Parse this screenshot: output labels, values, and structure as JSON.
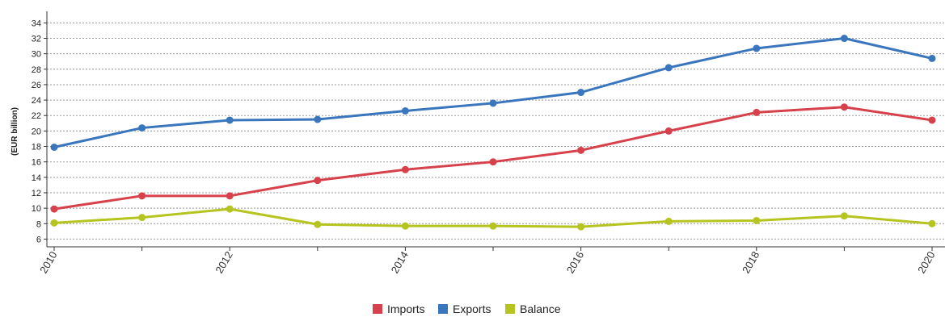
{
  "chart_data": {
    "type": "line",
    "title": "",
    "xlabel": "",
    "ylabel": "(EUR billion)",
    "x": [
      2010,
      2011,
      2012,
      2013,
      2014,
      2015,
      2016,
      2017,
      2018,
      2019,
      2020
    ],
    "x_tick_labels": [
      "2010",
      "2012",
      "2014",
      "2016",
      "2018",
      "2020"
    ],
    "y_tick_labels": [
      "6",
      "8",
      "10",
      "12",
      "14",
      "16",
      "18",
      "20",
      "22",
      "24",
      "26",
      "28",
      "30",
      "32",
      "34"
    ],
    "ylim": [
      5,
      35.5
    ],
    "grid": "horizontal-dotted",
    "legend_position": "bottom-center",
    "series": [
      {
        "name": "Imports",
        "color": "#d7414b",
        "values": [
          9.9,
          11.6,
          11.6,
          13.6,
          15.0,
          16.0,
          17.5,
          20.0,
          22.4,
          23.1,
          21.4
        ]
      },
      {
        "name": "Exports",
        "color": "#3a76bd",
        "values": [
          17.9,
          20.4,
          21.4,
          21.5,
          22.6,
          23.6,
          25.0,
          28.2,
          30.7,
          32.0,
          29.4
        ]
      },
      {
        "name": "Balance",
        "color": "#b5c41e",
        "values": [
          8.1,
          8.8,
          9.9,
          7.9,
          7.7,
          7.7,
          7.6,
          8.3,
          8.4,
          9.0,
          8.0
        ]
      }
    ]
  }
}
